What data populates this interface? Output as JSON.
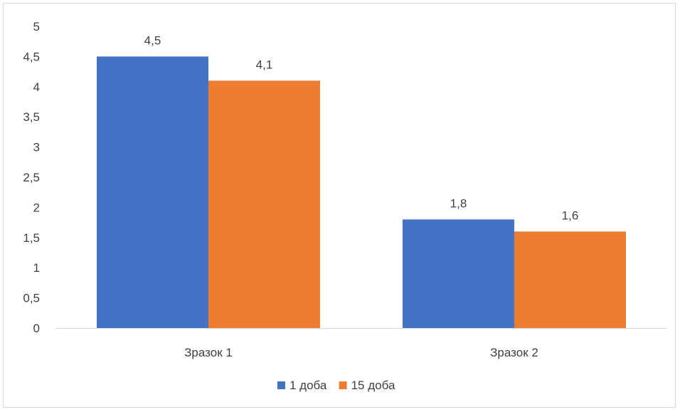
{
  "chart_data": {
    "type": "bar",
    "categories": [
      "Зразок 1",
      "Зразок 2"
    ],
    "series": [
      {
        "name": "1 доба",
        "values": [
          4.5,
          1.8
        ],
        "labels": [
          "4,5",
          "1,8"
        ],
        "color": "#4472C4"
      },
      {
        "name": "15 доба",
        "values": [
          4.1,
          1.6
        ],
        "labels": [
          "4,1",
          "1,6"
        ],
        "color": "#ED7D31"
      }
    ],
    "yticks": [
      "0",
      "0,5",
      "1",
      "1,5",
      "2",
      "2,5",
      "3",
      "3,5",
      "4",
      "4,5",
      "5"
    ],
    "ylim": [
      0,
      5
    ],
    "title": "",
    "xlabel": "",
    "ylabel": "",
    "grid": false,
    "legend_position": "bottom",
    "axis_color": "#d9d9d9"
  }
}
